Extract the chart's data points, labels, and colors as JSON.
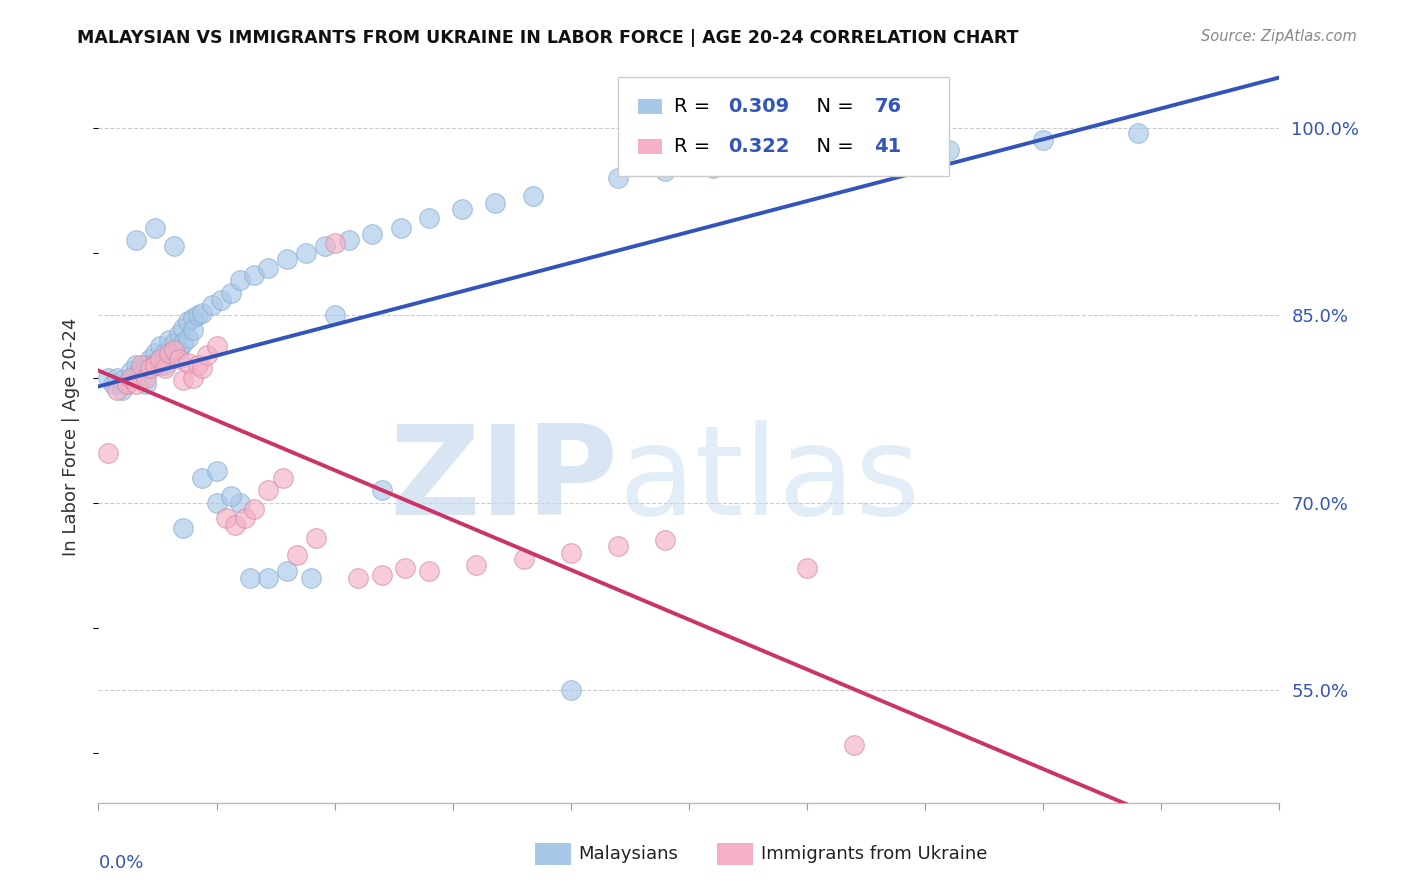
{
  "title": "MALAYSIAN VS IMMIGRANTS FROM UKRAINE IN LABOR FORCE | AGE 20-24 CORRELATION CHART",
  "source": "Source: ZipAtlas.com",
  "ylabel": "In Labor Force | Age 20-24",
  "ytick_labels": [
    "55.0%",
    "70.0%",
    "85.0%",
    "100.0%"
  ],
  "ytick_vals": [
    0.55,
    0.7,
    0.85,
    1.0
  ],
  "xlim": [
    0.0,
    0.25
  ],
  "ylim": [
    0.46,
    1.045
  ],
  "blue_color": "#a8c8e8",
  "pink_color": "#f4b0c4",
  "blue_line_color": "#3355bb",
  "pink_line_color": "#cc3366",
  "R_blue": 0.309,
  "N_blue": 76,
  "R_pink": 0.322,
  "N_pink": 41,
  "blue_x": [
    0.002,
    0.003,
    0.004,
    0.005,
    0.005,
    0.006,
    0.007,
    0.007,
    0.008,
    0.008,
    0.009,
    0.009,
    0.01,
    0.01,
    0.011,
    0.011,
    0.012,
    0.012,
    0.013,
    0.013,
    0.014,
    0.014,
    0.015,
    0.015,
    0.016,
    0.016,
    0.017,
    0.017,
    0.018,
    0.018,
    0.019,
    0.019,
    0.02,
    0.02,
    0.021,
    0.021,
    0.022,
    0.023,
    0.024,
    0.025,
    0.026,
    0.027,
    0.028,
    0.029,
    0.03,
    0.032,
    0.034,
    0.036,
    0.038,
    0.04,
    0.042,
    0.045,
    0.048,
    0.05,
    0.053,
    0.056,
    0.06,
    0.065,
    0.07,
    0.075,
    0.08,
    0.085,
    0.09,
    0.095,
    0.1,
    0.11,
    0.12,
    0.13,
    0.14,
    0.15,
    0.16,
    0.17,
    0.18,
    0.2,
    0.21,
    0.22
  ],
  "blue_y": [
    0.8,
    0.795,
    0.8,
    0.79,
    0.798,
    0.795,
    0.8,
    0.805,
    0.802,
    0.81,
    0.798,
    0.808,
    0.81,
    0.795,
    0.815,
    0.808,
    0.82,
    0.812,
    0.81,
    0.825,
    0.82,
    0.81,
    0.83,
    0.818,
    0.828,
    0.82,
    0.835,
    0.822,
    0.84,
    0.828,
    0.845,
    0.832,
    0.848,
    0.838,
    0.85,
    0.84,
    0.852,
    0.858,
    0.862,
    0.868,
    0.875,
    0.88,
    0.885,
    0.888,
    0.89,
    0.895,
    0.898,
    0.9,
    0.902,
    0.905,
    0.91,
    0.912,
    0.915,
    0.918,
    0.92,
    0.925,
    0.93,
    0.938,
    0.943,
    0.948,
    0.952,
    0.96,
    0.968,
    0.975,
    0.978,
    0.982,
    0.985,
    0.988,
    0.99,
    0.992,
    0.994,
    0.996,
    0.998,
    1.0,
    1.0,
    1.0
  ],
  "scatter_blue_x": [
    0.002,
    0.003,
    0.004,
    0.005,
    0.005,
    0.006,
    0.007,
    0.007,
    0.008,
    0.008,
    0.009,
    0.009,
    0.01,
    0.01,
    0.011,
    0.011,
    0.012,
    0.012,
    0.013,
    0.013,
    0.014,
    0.014,
    0.015,
    0.015,
    0.016,
    0.016,
    0.017,
    0.017,
    0.018,
    0.018,
    0.019,
    0.019,
    0.02,
    0.02,
    0.021,
    0.022,
    0.024,
    0.026,
    0.028,
    0.03,
    0.033,
    0.036,
    0.04,
    0.044,
    0.048,
    0.053,
    0.058,
    0.064,
    0.07,
    0.077,
    0.084,
    0.092,
    0.1,
    0.11,
    0.12,
    0.13,
    0.14,
    0.16,
    0.18,
    0.2,
    0.22,
    0.05,
    0.06,
    0.008,
    0.012,
    0.016,
    0.025,
    0.03,
    0.018,
    0.022,
    0.025,
    0.028,
    0.032,
    0.036,
    0.04,
    0.045
  ],
  "scatter_blue_y": [
    0.8,
    0.795,
    0.8,
    0.79,
    0.798,
    0.795,
    0.8,
    0.805,
    0.802,
    0.81,
    0.798,
    0.808,
    0.81,
    0.795,
    0.815,
    0.808,
    0.82,
    0.812,
    0.81,
    0.825,
    0.82,
    0.81,
    0.83,
    0.818,
    0.828,
    0.82,
    0.835,
    0.822,
    0.84,
    0.828,
    0.845,
    0.832,
    0.848,
    0.838,
    0.85,
    0.852,
    0.858,
    0.862,
    0.868,
    0.878,
    0.882,
    0.888,
    0.895,
    0.9,
    0.905,
    0.91,
    0.915,
    0.92,
    0.928,
    0.935,
    0.94,
    0.945,
    0.55,
    0.96,
    0.965,
    0.968,
    0.972,
    0.978,
    0.982,
    0.99,
    0.996,
    0.85,
    0.71,
    0.91,
    0.92,
    0.905,
    0.7,
    0.7,
    0.68,
    0.72,
    0.725,
    0.705,
    0.64,
    0.64,
    0.645,
    0.64
  ],
  "scatter_pink_x": [
    0.002,
    0.004,
    0.006,
    0.007,
    0.008,
    0.009,
    0.01,
    0.011,
    0.012,
    0.013,
    0.014,
    0.015,
    0.016,
    0.017,
    0.018,
    0.019,
    0.02,
    0.021,
    0.022,
    0.023,
    0.025,
    0.027,
    0.029,
    0.031,
    0.033,
    0.036,
    0.039,
    0.042,
    0.046,
    0.05,
    0.055,
    0.06,
    0.065,
    0.07,
    0.08,
    0.09,
    0.1,
    0.11,
    0.12,
    0.15,
    0.16
  ],
  "scatter_pink_y": [
    0.74,
    0.79,
    0.795,
    0.8,
    0.795,
    0.81,
    0.8,
    0.808,
    0.81,
    0.815,
    0.808,
    0.82,
    0.822,
    0.815,
    0.798,
    0.812,
    0.8,
    0.81,
    0.808,
    0.818,
    0.825,
    0.688,
    0.682,
    0.688,
    0.695,
    0.71,
    0.72,
    0.658,
    0.672,
    0.908,
    0.64,
    0.642,
    0.648,
    0.645,
    0.65,
    0.655,
    0.66,
    0.665,
    0.67,
    0.648,
    0.506
  ]
}
